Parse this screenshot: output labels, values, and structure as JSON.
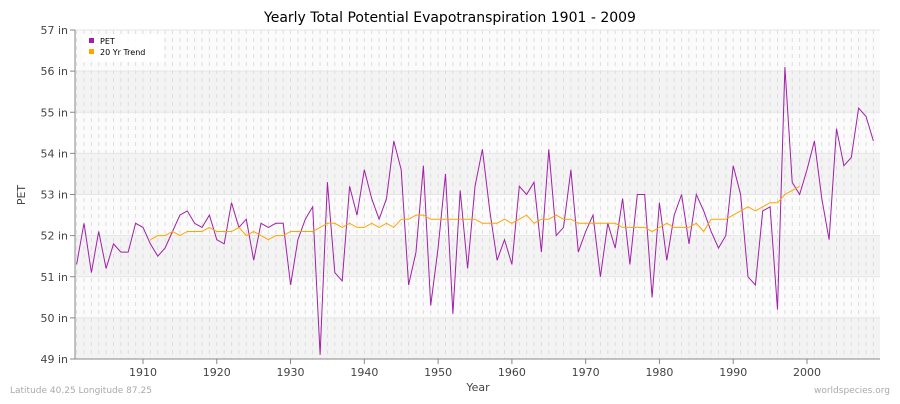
{
  "chart_data": {
    "type": "line",
    "title": "Yearly Total Potential Evapotranspiration 1901 - 2009",
    "xlabel": "Year",
    "ylabel": "PET",
    "xlim": [
      1901,
      2009
    ],
    "ylim": [
      49,
      57
    ],
    "y_ticks": [
      "49 in",
      "50 in",
      "51 in",
      "52 in",
      "53 in",
      "54 in",
      "55 in",
      "56 in",
      "57 in"
    ],
    "x_ticks": [
      "1910",
      "1920",
      "1930",
      "1940",
      "1950",
      "1960",
      "1970",
      "1980",
      "1990",
      "2000"
    ],
    "grid": true,
    "legend_position": "top-left",
    "series": [
      {
        "name": "PET",
        "color": "#a020a8",
        "start_year": 1901,
        "values": [
          51.3,
          52.3,
          51.1,
          52.1,
          51.2,
          51.8,
          51.6,
          51.6,
          52.3,
          52.2,
          51.8,
          51.5,
          51.7,
          52.1,
          52.5,
          52.6,
          52.3,
          52.2,
          52.5,
          51.9,
          51.8,
          52.8,
          52.2,
          52.4,
          51.4,
          52.3,
          52.2,
          52.3,
          52.3,
          50.8,
          51.9,
          52.4,
          52.7,
          49.1,
          53.3,
          51.1,
          50.9,
          53.2,
          52.5,
          53.6,
          52.9,
          52.4,
          52.9,
          54.3,
          53.6,
          50.8,
          51.6,
          53.7,
          50.3,
          51.7,
          53.5,
          50.1,
          53.1,
          51.2,
          53.2,
          54.1,
          52.6,
          51.4,
          51.9,
          51.3,
          53.2,
          53.0,
          53.3,
          51.6,
          54.1,
          52.0,
          52.2,
          53.6,
          51.6,
          52.1,
          52.5,
          51.0,
          52.3,
          51.7,
          52.9,
          51.3,
          53.0,
          53.0,
          50.5,
          52.8,
          51.4,
          52.5,
          53.0,
          51.8,
          53.0,
          52.6,
          52.1,
          51.7,
          52.0,
          53.7,
          53.0,
          51.0,
          50.8,
          52.6,
          52.7,
          50.2,
          56.1,
          53.3,
          53.0,
          53.6,
          54.3,
          52.9,
          51.9,
          54.6,
          53.7,
          53.9,
          55.1,
          54.9,
          54.3
        ]
      },
      {
        "name": "20 Yr Trend",
        "color": "#ffa500",
        "start_year": 1911,
        "values": [
          51.9,
          52.0,
          52.0,
          52.1,
          52.0,
          52.1,
          52.1,
          52.1,
          52.2,
          52.1,
          52.1,
          52.1,
          52.2,
          52.0,
          52.1,
          52.0,
          51.9,
          52.0,
          52.0,
          52.1,
          52.1,
          52.1,
          52.1,
          52.2,
          52.3,
          52.3,
          52.2,
          52.3,
          52.2,
          52.2,
          52.3,
          52.2,
          52.3,
          52.2,
          52.4,
          52.4,
          52.5,
          52.5,
          52.4,
          52.4,
          52.4,
          52.4,
          52.4,
          52.4,
          52.4,
          52.3,
          52.3,
          52.3,
          52.4,
          52.3,
          52.4,
          52.5,
          52.3,
          52.4,
          52.4,
          52.5,
          52.4,
          52.4,
          52.3,
          52.3,
          52.3,
          52.3,
          52.3,
          52.3,
          52.2,
          52.2,
          52.2,
          52.2,
          52.1,
          52.2,
          52.3,
          52.2,
          52.2,
          52.2,
          52.3,
          52.1,
          52.4,
          52.4,
          52.4,
          52.5,
          52.6,
          52.7,
          52.6,
          52.7,
          52.8,
          52.8,
          53.0,
          53.1,
          53.2
        ]
      }
    ]
  },
  "footer": {
    "left": "Latitude 40.25 Longitude 87.25",
    "right": "worldspecies.org"
  }
}
